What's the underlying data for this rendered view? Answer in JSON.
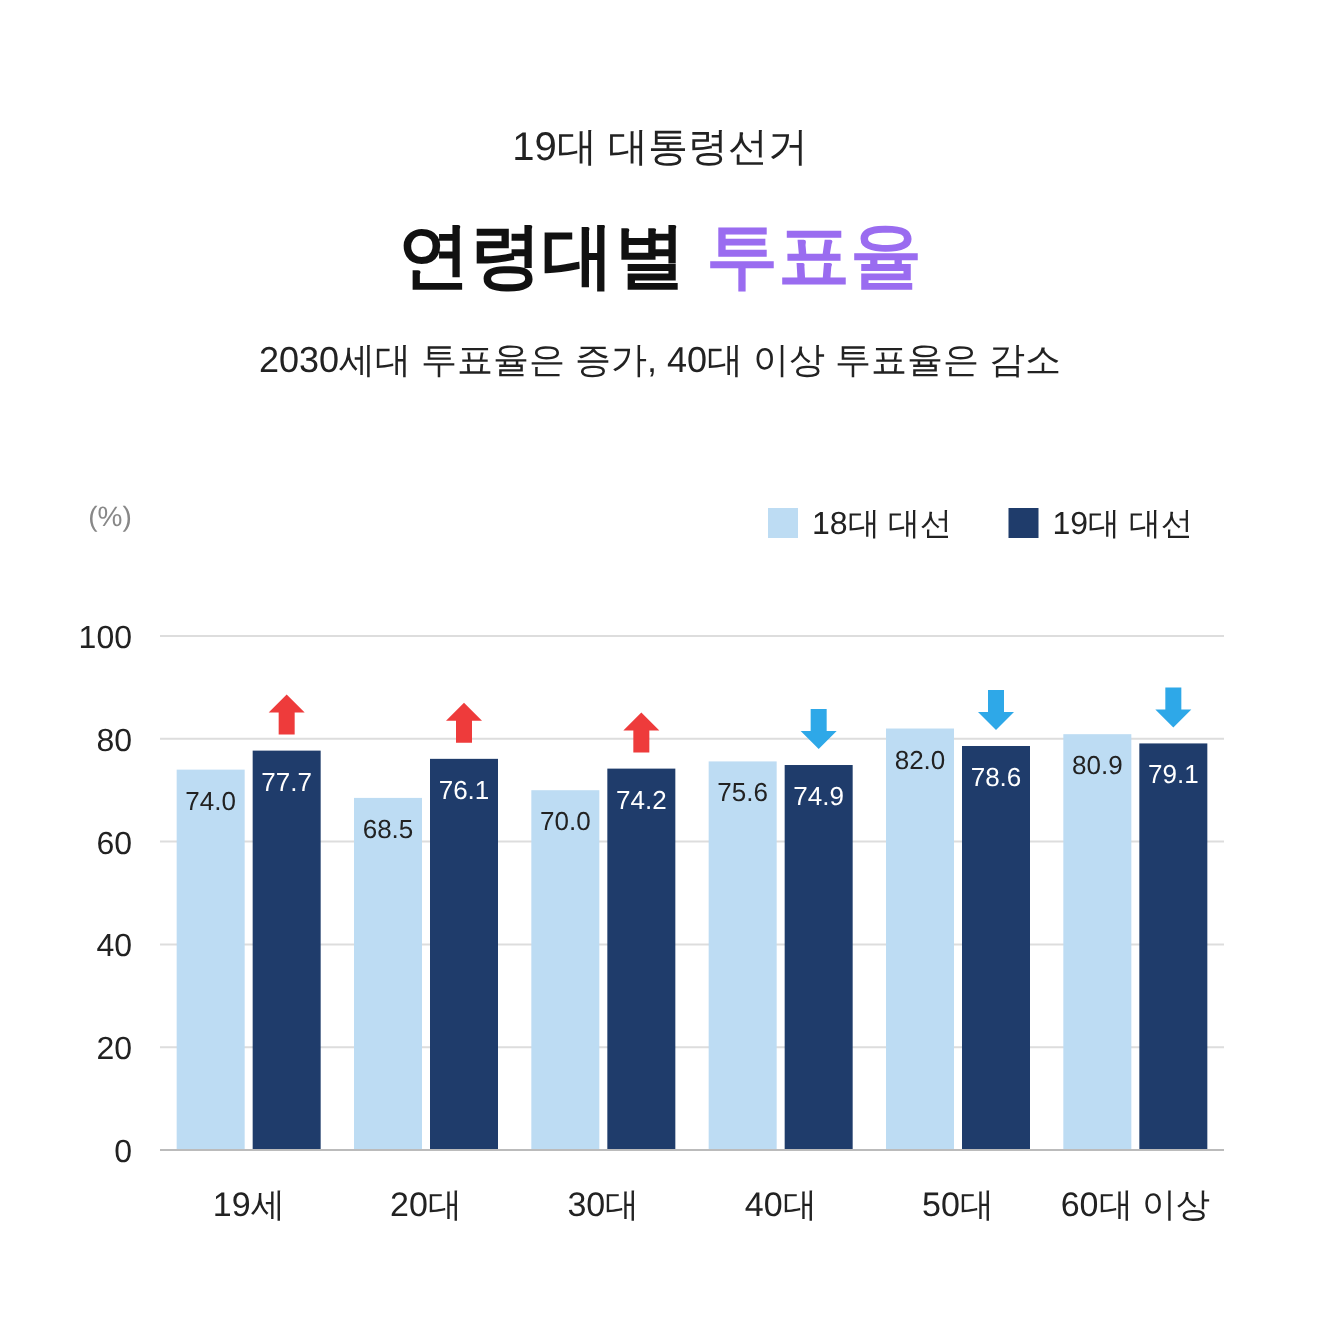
{
  "chart_data": {
    "type": "bar",
    "title": "연령대별 투표율",
    "subtitle": "2030세대 투표율은 증가, 40대 이상 투표율은 감소",
    "annotations": [
      "19대 대통령선거"
    ],
    "ylabel": "(%)",
    "categories": [
      "19세",
      "20대",
      "30대",
      "40대",
      "50대",
      "60대 이상"
    ],
    "series": [
      {
        "name": "18대 대선",
        "color": "#bddcf3",
        "values": [
          74.0,
          68.5,
          70.0,
          75.6,
          82.0,
          80.9
        ],
        "value_labels": [
          "74.0",
          "68.5",
          "70.0",
          "75.6",
          "82.0",
          "80.9"
        ]
      },
      {
        "name": "19대 대선",
        "color": "#1f3c6b",
        "values": [
          77.7,
          76.1,
          74.2,
          74.9,
          78.6,
          79.1
        ],
        "value_labels": [
          "77.7",
          "76.1",
          "74.2",
          "74.9",
          "78.6",
          "79.1"
        ]
      }
    ],
    "ylim": [
      0,
      100
    ],
    "yticks": [
      0,
      20,
      40,
      60,
      80,
      100
    ],
    "grid": "y",
    "legend": "top right"
  }
}
